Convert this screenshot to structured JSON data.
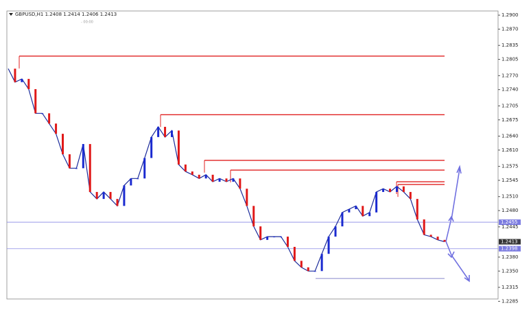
{
  "chart_data": {
    "type": "line",
    "title": "GBPUSD,H1  1.2408 1.2414 1.2406 1.2413",
    "subtitle": "- 00:00",
    "values": [
      1.2785,
      1.2756,
      1.2763,
      1.2741,
      1.2689,
      1.2689,
      1.2667,
      1.2645,
      1.2601,
      1.2571,
      1.2571,
      1.2623,
      1.252,
      1.2505,
      1.252,
      1.2505,
      1.249,
      1.2534,
      1.2549,
      1.2549,
      1.2593,
      1.2638,
      1.266,
      1.2638,
      1.2652,
      1.2579,
      1.2564,
      1.2557,
      1.2549,
      1.2557,
      1.2542,
      1.2549,
      1.2542,
      1.2549,
      1.2527,
      1.249,
      1.2446,
      1.2417,
      1.2424,
      1.2424,
      1.2424,
      1.2402,
      1.2372,
      1.2358,
      1.235,
      1.235,
      1.2387,
      1.2424,
      1.2446,
      1.2476,
      1.2483,
      1.249,
      1.2468,
      1.2476,
      1.252,
      1.2527,
      1.252,
      1.2532,
      1.252,
      1.2505,
      1.2461,
      1.2428,
      1.2424,
      1.2417,
      1.2413
    ],
    "color": "#1a2a9a",
    "ylim": [
      1.229,
      1.2909
    ],
    "yticks": [
      {
        "value": 1.29,
        "label": "1.2900"
      },
      {
        "value": 1.287,
        "label": "1.2870"
      },
      {
        "value": 1.2835,
        "label": "1.2835"
      },
      {
        "value": 1.2805,
        "label": "1.2805"
      },
      {
        "value": 1.277,
        "label": "1.2770"
      },
      {
        "value": 1.274,
        "label": "1.2740"
      },
      {
        "value": 1.2705,
        "label": "1.2705"
      },
      {
        "value": 1.2675,
        "label": "1.2675"
      },
      {
        "value": 1.264,
        "label": "1.2640"
      },
      {
        "value": 1.261,
        "label": "1.2610"
      },
      {
        "value": 1.2575,
        "label": "1.2575"
      },
      {
        "value": 1.2545,
        "label": "1.2545"
      },
      {
        "value": 1.251,
        "label": "1.2510"
      },
      {
        "value": 1.248,
        "label": "1.2480"
      },
      {
        "value": 1.2445,
        "label": "1.2445"
      },
      {
        "value": 1.238,
        "label": "1.2380"
      },
      {
        "value": 1.235,
        "label": "1.2350"
      },
      {
        "value": 1.2315,
        "label": "1.2315"
      },
      {
        "value": 1.2285,
        "label": "1.2285"
      }
    ],
    "levels": [
      {
        "value": 1.2812,
        "color": "#e02020"
      },
      {
        "value": 1.2686,
        "color": "#e02020"
      },
      {
        "value": 1.2588,
        "color": "#e02020"
      },
      {
        "value": 1.2567,
        "color": "#e02020"
      },
      {
        "value": 1.2542,
        "color": "#e02020"
      },
      {
        "value": 1.2536,
        "color": "#e02020"
      },
      {
        "value": 1.2334,
        "color": "#8888cc"
      }
    ],
    "hlines": [
      {
        "value": 1.2455,
        "label": "1.2455"
      },
      {
        "value": 1.2398,
        "label": "1.2398"
      }
    ],
    "price_tag": {
      "value": 1.2413,
      "label": "1.2413"
    }
  }
}
